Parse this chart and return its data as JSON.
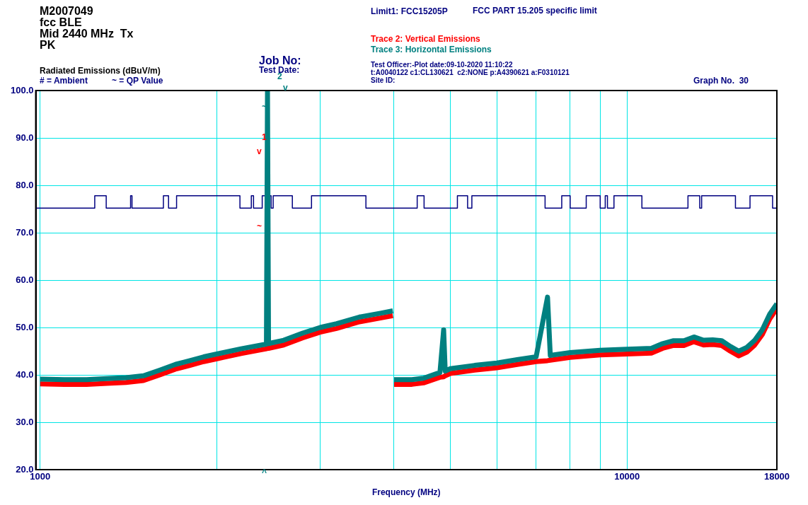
{
  "chart_data": {
    "type": "line",
    "title": "M2007049",
    "subtitle": "fcc BLE\nMid 2440 MHz  Tx\nPK",
    "xlabel": "Frequency (MHz)",
    "ylabel": "Radiated Emissions (dBuV/m)",
    "log": "x",
    "grid": true,
    "legend": "top",
    "marker": "none",
    "xlim": [
      983,
      18000
    ],
    "ylim": [
      20,
      100
    ],
    "xticks": [
      1000,
      {
        "value": 2000,
        "label": null
      },
      {
        "value": 3000,
        "label": null
      },
      {
        "value": 4000,
        "label": null
      },
      {
        "value": 5000,
        "label": null
      },
      {
        "value": 6000,
        "label": null
      },
      {
        "value": 7000,
        "label": null
      },
      {
        "value": 8000,
        "label": null
      },
      {
        "value": 9000,
        "label": null
      },
      10000,
      18000
    ],
    "yticks": [
      {
        "value": 20,
        "label": "20.0"
      },
      {
        "value": 30,
        "label": "30.0"
      },
      {
        "value": 40,
        "label": "40.0"
      },
      {
        "value": 50,
        "label": "50.0"
      },
      {
        "value": 60,
        "label": "60.0"
      },
      {
        "value": 70,
        "label": "70.0"
      },
      {
        "value": 80,
        "label": "80.0"
      },
      {
        "value": 90,
        "label": "90.0"
      },
      {
        "value": 100,
        "label": "100.0"
      }
    ],
    "series": [
      {
        "name": "Limit1: FCC15205P",
        "type": "step",
        "color": "#000080",
        "x": [
          983,
          1239,
          1296,
          1426,
          1434,
          1622,
          1655,
          1708,
          2190,
          2290,
          2310,
          2390,
          2475,
          2495,
          2690,
          2900,
          3590,
          4390,
          4510,
          5140,
          5350,
          5440,
          7250,
          7740,
          8000,
          8520,
          9000,
          9180,
          9260,
          9500,
          10600,
          12700,
          13300,
          13400,
          15300,
          16200,
          17700,
          18000
        ],
        "values": [
          75.2,
          77.8,
          75.2,
          77.8,
          75.2,
          77.8,
          75.2,
          77.8,
          75.2,
          77.8,
          75.2,
          77.8,
          75.2,
          77.8,
          75.2,
          77.8,
          75.2,
          77.8,
          75.2,
          77.8,
          75.2,
          77.8,
          75.2,
          77.8,
          75.2,
          77.8,
          75.2,
          77.8,
          75.2,
          77.8,
          75.2,
          77.8,
          75.2,
          77.8,
          75.2,
          77.8,
          75.2,
          75.2
        ]
      },
      {
        "name": "Trace 2: Vertical Emissions",
        "color": "#ff0000",
        "x": [
          1000,
          1100,
          1200,
          1300,
          1400,
          1500,
          1600,
          1700,
          1800,
          1900,
          2000,
          2200,
          2430,
          2440,
          2450,
          2600,
          2800,
          3000,
          3200,
          3500,
          3800,
          3990,
          4000,
          4010,
          4300,
          4500,
          4800,
          4870,
          4900,
          5000,
          5500,
          6000,
          6500,
          7000,
          7320,
          7400,
          8000,
          9000,
          10000,
          11000,
          11500,
          12000,
          12500,
          13000,
          13500,
          14000,
          14500,
          15000,
          15500,
          16000,
          16500,
          17000,
          17500,
          18000
        ],
        "values": [
          38.1,
          38.0,
          38.0,
          38.2,
          38.4,
          38.8,
          40.0,
          41.2,
          42.0,
          42.8,
          43.4,
          44.5,
          45.5,
          45.6,
          45.6,
          46.3,
          47.8,
          49.0,
          49.8,
          51.2,
          52.0,
          52.5,
          null,
          38.0,
          38.0,
          38.3,
          39.5,
          39.6,
          39.8,
          40.3,
          41.0,
          41.5,
          42.2,
          42.8,
          43.0,
          43.1,
          43.7,
          44.2,
          44.4,
          44.6,
          45.6,
          46.2,
          46.2,
          47.0,
          46.3,
          46.4,
          46.2,
          45.0,
          44.0,
          44.8,
          46.3,
          48.5,
          51.8,
          54.0
        ]
      },
      {
        "name": "Trace 3: Horizontal Emissions",
        "color": "#008080",
        "x": [
          1000,
          1100,
          1200,
          1300,
          1400,
          1500,
          1600,
          1700,
          1800,
          1900,
          2000,
          2200,
          2430,
          2440,
          2450,
          2600,
          2800,
          3000,
          3200,
          3500,
          3800,
          3990,
          4000,
          4010,
          4300,
          4500,
          4800,
          4870,
          4900,
          5000,
          5500,
          6000,
          6500,
          7000,
          7320,
          7400,
          8000,
          9000,
          10000,
          11000,
          11500,
          12000,
          12500,
          13000,
          13500,
          14000,
          14500,
          15000,
          15500,
          16000,
          16500,
          17000,
          17500,
          18000
        ],
        "values": [
          39.1,
          39.0,
          39.0,
          39.2,
          39.4,
          39.8,
          41.0,
          42.2,
          43.0,
          43.8,
          44.4,
          45.5,
          46.5,
          100,
          46.6,
          47.3,
          48.8,
          50.0,
          50.8,
          52.2,
          53.0,
          53.5,
          null,
          39.0,
          39.0,
          39.3,
          40.5,
          49.5,
          40.8,
          41.3,
          42.0,
          42.5,
          43.2,
          43.8,
          56.4,
          44.1,
          44.7,
          45.2,
          45.4,
          45.6,
          46.6,
          47.2,
          47.2,
          48.0,
          47.3,
          47.4,
          47.2,
          46.0,
          45.0,
          45.8,
          47.3,
          49.5,
          52.8,
          55.0
        ]
      }
    ],
    "annotations": [
      "# = Ambient",
      "~ = QP Value",
      "Job No:",
      "Test Date:",
      "Test Officer:-Plot date:09-10-2020 11:10:22",
      "t:A0040122 c1:CL130621  c2:NONE p:A4390621 a:F0310121",
      "Site ID:",
      "Graph No.  30",
      "FCC PART 15.205 specific limit",
      "2",
      "v",
      "~",
      "1",
      "v",
      "~",
      "^"
    ]
  }
}
